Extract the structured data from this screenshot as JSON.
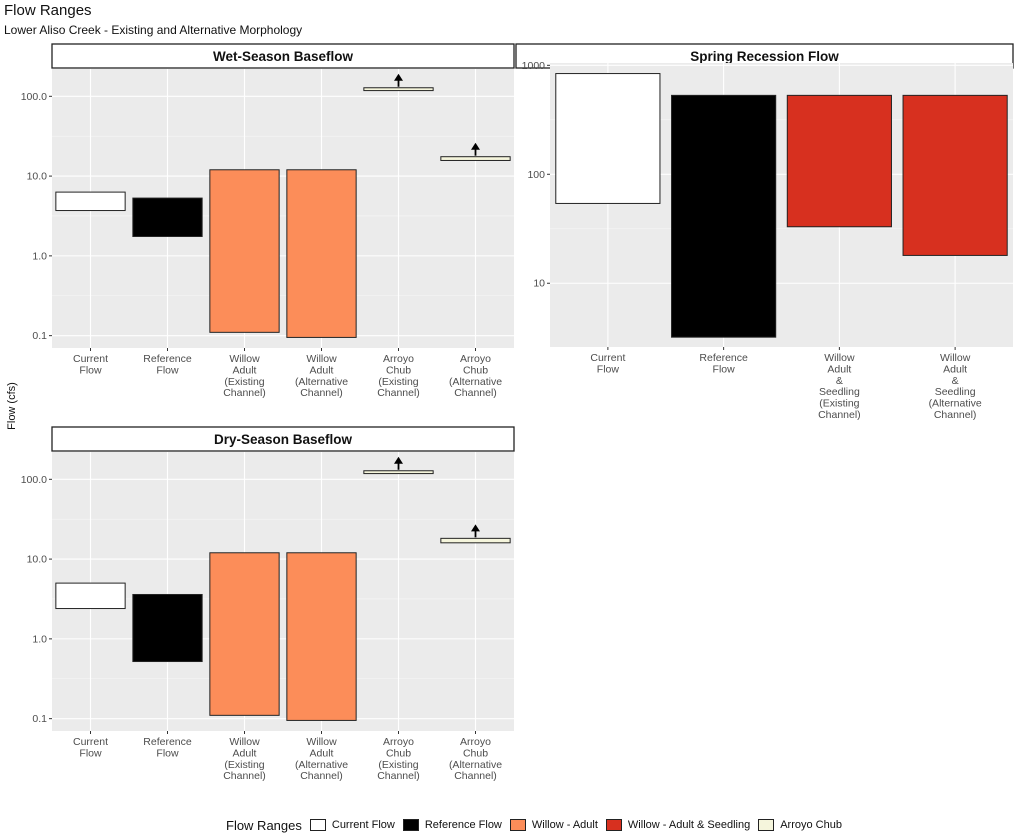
{
  "title": "Flow Ranges",
  "subtitle": "Lower Aliso Creek - Existing and Alternative Morphology",
  "ylabel": "Flow (cfs)",
  "legend": {
    "title": "Flow Ranges",
    "items": [
      {
        "label": "Current Flow",
        "color": "#ffffff"
      },
      {
        "label": "Reference Flow",
        "color": "#000000"
      },
      {
        "label": "Willow - Adult",
        "color": "#fc8d59"
      },
      {
        "label": "Willow - Adult & Seedling",
        "color": "#d7301f"
      },
      {
        "label": "Arroyo Chub",
        "color": "#f5f5dc"
      }
    ]
  },
  "chart_data": [
    {
      "type": "bar",
      "title": "Wet-Season Baseflow",
      "yscale": "log10",
      "ylim": [
        0.07,
        220
      ],
      "yticks": [
        {
          "value": 0.1,
          "label": "0.1"
        },
        {
          "value": 1,
          "label": "1.0"
        },
        {
          "value": 10,
          "label": "10.0"
        },
        {
          "value": 100,
          "label": "100.0"
        }
      ],
      "categories": [
        [
          "Current",
          "Flow"
        ],
        [
          "Reference",
          "Flow"
        ],
        [
          "Willow",
          "Adult",
          "(Existing",
          "Channel)"
        ],
        [
          "Willow",
          "Adult",
          "(Alternative",
          "Channel)"
        ],
        [
          "Arroyo",
          "Chub",
          "(Existing",
          "Channel)"
        ],
        [
          "Arroyo",
          "Chub",
          "(Alternative",
          "Channel)"
        ]
      ],
      "ranges": [
        {
          "low": 3.7,
          "high": 6.3,
          "color": "#ffffff",
          "arrow": false
        },
        {
          "low": 1.75,
          "high": 5.3,
          "color": "#000000",
          "arrow": false
        },
        {
          "low": 0.11,
          "high": 12,
          "color": "#fc8d59",
          "arrow": false
        },
        {
          "low": 0.095,
          "high": 12,
          "color": "#fc8d59",
          "arrow": false
        },
        {
          "low": 118,
          "high": 128,
          "color": "#f5f5dc",
          "arrow": true
        },
        {
          "low": 15.7,
          "high": 17.5,
          "color": "#f5f5dc",
          "arrow": true
        }
      ]
    },
    {
      "type": "bar",
      "title": "Spring Recession Flow",
      "yscale": "log10",
      "ylim": [
        2.6,
        1050
      ],
      "yticks": [
        {
          "value": 10,
          "label": "10"
        },
        {
          "value": 100,
          "label": "100"
        },
        {
          "value": 1000,
          "label": "1000"
        }
      ],
      "categories": [
        [
          "Current",
          "Flow"
        ],
        [
          "Reference",
          "Flow"
        ],
        [
          "Willow",
          "Adult",
          "&",
          "Seedling",
          "(Existing",
          "Channel)"
        ],
        [
          "Willow",
          "Adult",
          "&",
          "Seedling",
          "(Alternative",
          "Channel)"
        ]
      ],
      "ranges": [
        {
          "low": 54,
          "high": 840,
          "color": "#ffffff",
          "arrow": false
        },
        {
          "low": 3.2,
          "high": 530,
          "color": "#000000",
          "arrow": false
        },
        {
          "low": 33,
          "high": 530,
          "color": "#d7301f",
          "arrow": false
        },
        {
          "low": 18,
          "high": 530,
          "color": "#d7301f",
          "arrow": false
        }
      ]
    },
    {
      "type": "bar",
      "title": "Dry-Season Baseflow",
      "yscale": "log10",
      "ylim": [
        0.07,
        220
      ],
      "yticks": [
        {
          "value": 0.1,
          "label": "0.1"
        },
        {
          "value": 1,
          "label": "1.0"
        },
        {
          "value": 10,
          "label": "10.0"
        },
        {
          "value": 100,
          "label": "100.0"
        }
      ],
      "categories": [
        [
          "Current",
          "Flow"
        ],
        [
          "Reference",
          "Flow"
        ],
        [
          "Willow",
          "Adult",
          "(Existing",
          "Channel)"
        ],
        [
          "Willow",
          "Adult",
          "(Alternative",
          "Channel)"
        ],
        [
          "Arroyo",
          "Chub",
          "(Existing",
          "Channel)"
        ],
        [
          "Arroyo",
          "Chub",
          "(Alternative",
          "Channel)"
        ]
      ],
      "ranges": [
        {
          "low": 2.4,
          "high": 5.0,
          "color": "#ffffff",
          "arrow": false
        },
        {
          "low": 0.52,
          "high": 3.6,
          "color": "#000000",
          "arrow": false
        },
        {
          "low": 0.11,
          "high": 12,
          "color": "#fc8d59",
          "arrow": false
        },
        {
          "low": 0.095,
          "high": 12,
          "color": "#fc8d59",
          "arrow": false
        },
        {
          "low": 118,
          "high": 128,
          "color": "#f5f5dc",
          "arrow": true
        },
        {
          "low": 16,
          "high": 18.2,
          "color": "#f5f5dc",
          "arrow": true
        }
      ]
    }
  ]
}
